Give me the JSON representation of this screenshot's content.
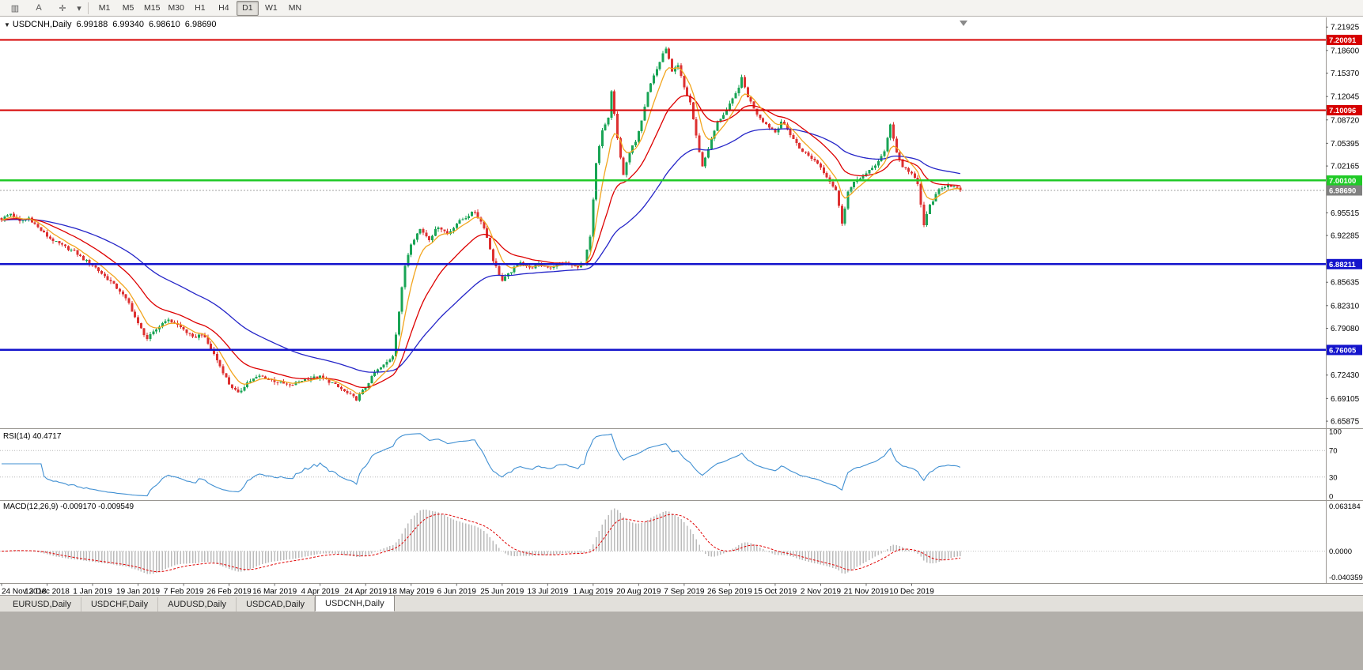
{
  "toolbar": {
    "icons": [
      {
        "name": "chart-window-icon",
        "glyph": "▥"
      },
      {
        "name": "text-annotation-icon",
        "glyph": "A"
      },
      {
        "name": "crosshair-icon",
        "glyph": "✛"
      },
      {
        "name": "dropdown-caret-icon",
        "glyph": "▾"
      }
    ],
    "timeframes": [
      "M1",
      "M5",
      "M15",
      "M30",
      "H1",
      "H4",
      "D1",
      "W1",
      "MN"
    ],
    "active_timeframe": "D1"
  },
  "chart": {
    "symbol": "USDCNH,Daily",
    "collapse_icon": "▼",
    "ohlc": {
      "open": "6.99188",
      "high": "6.99340",
      "low": "6.98610",
      "close": "6.98690"
    }
  },
  "indicators": {
    "rsi": {
      "label": "RSI(14) 40.4717",
      "period": 14,
      "value": 40.4717,
      "scale_labels": [
        100,
        70,
        30,
        0
      ],
      "level_lines": [
        70,
        30
      ],
      "color": "#3f8fd2"
    },
    "macd": {
      "label": "MACD(12,26,9) -0.009170 -0.009549",
      "fast": 12,
      "slow": 26,
      "signal": 9,
      "macd_value": "-0.009170",
      "signal_value": "-0.009549",
      "scale_max": "0.063184",
      "scale_zero": "0.0000",
      "scale_min": "-0.040359",
      "scale_max_num": 0.063184,
      "scale_min_num": -0.040359,
      "histogram_color": "#bbbbbb",
      "signal_color": "#e00000"
    }
  },
  "price_scale": {
    "ticks": [
      "7.21925",
      "7.18600",
      "7.15370",
      "7.12045",
      "7.08720",
      "7.05395",
      "7.02165",
      "6.95515",
      "6.92285",
      "6.85635",
      "6.82310",
      "6.79080",
      "6.72430",
      "6.69105",
      "6.65875"
    ],
    "badges": [
      {
        "label": "7.20091",
        "price": 7.20091,
        "color": "#d60000",
        "name": "resistance-badge-1"
      },
      {
        "label": "7.10096",
        "price": 7.10096,
        "color": "#d60000",
        "name": "resistance-badge-2"
      },
      {
        "label": "7.00100",
        "price": 7.001,
        "color": "#1fca26",
        "name": "support-badge-green"
      },
      {
        "label": "6.98690",
        "price": 6.9869,
        "color": "#808080",
        "name": "current-price-badge"
      },
      {
        "label": "6.88211",
        "price": 6.88211,
        "color": "#1414cc",
        "name": "support-badge-blue-1"
      },
      {
        "label": "6.76005",
        "price": 6.76005,
        "color": "#1414cc",
        "name": "support-badge-blue-2"
      }
    ]
  },
  "chart_data": {
    "type": "candlestick",
    "symbol": "USDCNH",
    "timeframe": "Daily",
    "title": "USDCNH,Daily 6.99188 6.99340 6.98610 6.98690",
    "x_labels": [
      "24 Nov 2018",
      "13 Dec 2018",
      "1 Jan 2019",
      "19 Jan 2019",
      "7 Feb 2019",
      "26 Feb 2019",
      "16 Mar 2019",
      "4 Apr 2019",
      "24 Apr 2019",
      "18 May 2019",
      "6 Jun 2019",
      "25 Jun 2019",
      "13 Jul 2019",
      "1 Aug 2019",
      "20 Aug 2019",
      "7 Sep 2019",
      "26 Sep 2019",
      "15 Oct 2019",
      "2 Nov 2019",
      "21 Nov 2019",
      "10 Dec 2019"
    ],
    "bars_per_label": 15,
    "bar_count": 317,
    "price_range": [
      6.655,
      7.245
    ],
    "last_close": 6.9869,
    "up_color": "#19a455",
    "down_color": "#dd3030",
    "noise": 0.0042,
    "wick": 0.004,
    "close_keyframes": [
      [
        0,
        6.946
      ],
      [
        3,
        6.954
      ],
      [
        6,
        6.942
      ],
      [
        9,
        6.948
      ],
      [
        12,
        6.934
      ],
      [
        15,
        6.922
      ],
      [
        18,
        6.913
      ],
      [
        21,
        6.906
      ],
      [
        24,
        6.9
      ],
      [
        27,
        6.889
      ],
      [
        30,
        6.881
      ],
      [
        33,
        6.869
      ],
      [
        36,
        6.857
      ],
      [
        39,
        6.844
      ],
      [
        42,
        6.826
      ],
      [
        45,
        6.797
      ],
      [
        48,
        6.776
      ],
      [
        51,
        6.789
      ],
      [
        54,
        6.803
      ],
      [
        57,
        6.799
      ],
      [
        60,
        6.789
      ],
      [
        63,
        6.777
      ],
      [
        66,
        6.783
      ],
      [
        69,
        6.762
      ],
      [
        72,
        6.737
      ],
      [
        75,
        6.712
      ],
      [
        78,
        6.698
      ],
      [
        81,
        6.714
      ],
      [
        85,
        6.723
      ],
      [
        90,
        6.716
      ],
      [
        95,
        6.709
      ],
      [
        100,
        6.719
      ],
      [
        105,
        6.722
      ],
      [
        109,
        6.713
      ],
      [
        113,
        6.701
      ],
      [
        117,
        6.69
      ],
      [
        120,
        6.707
      ],
      [
        123,
        6.728
      ],
      [
        126,
        6.738
      ],
      [
        129,
        6.752
      ],
      [
        131,
        6.815
      ],
      [
        133,
        6.88
      ],
      [
        135,
        6.912
      ],
      [
        138,
        6.932
      ],
      [
        141,
        6.918
      ],
      [
        144,
        6.936
      ],
      [
        147,
        6.925
      ],
      [
        150,
        6.94
      ],
      [
        153,
        6.949
      ],
      [
        156,
        6.957
      ],
      [
        159,
        6.935
      ],
      [
        162,
        6.888
      ],
      [
        165,
        6.858
      ],
      [
        168,
        6.872
      ],
      [
        171,
        6.886
      ],
      [
        174,
        6.876
      ],
      [
        177,
        6.881
      ],
      [
        181,
        6.878
      ],
      [
        185,
        6.884
      ],
      [
        189,
        6.878
      ],
      [
        192,
        6.882
      ],
      [
        194,
        6.92
      ],
      [
        196,
        7.025
      ],
      [
        198,
        7.072
      ],
      [
        200,
        7.09
      ],
      [
        201,
        7.128
      ],
      [
        203,
        7.06
      ],
      [
        205,
        7.01
      ],
      [
        207,
        7.04
      ],
      [
        209,
        7.058
      ],
      [
        211,
        7.088
      ],
      [
        213,
        7.128
      ],
      [
        215,
        7.15
      ],
      [
        217,
        7.17
      ],
      [
        219,
        7.19
      ],
      [
        221,
        7.155
      ],
      [
        223,
        7.164
      ],
      [
        225,
        7.133
      ],
      [
        227,
        7.112
      ],
      [
        229,
        7.064
      ],
      [
        231,
        7.021
      ],
      [
        233,
        7.047
      ],
      [
        236,
        7.084
      ],
      [
        239,
        7.101
      ],
      [
        242,
        7.124
      ],
      [
        244,
        7.146
      ],
      [
        246,
        7.121
      ],
      [
        249,
        7.096
      ],
      [
        252,
        7.081
      ],
      [
        255,
        7.07
      ],
      [
        257,
        7.085
      ],
      [
        260,
        7.067
      ],
      [
        263,
        7.047
      ],
      [
        266,
        7.036
      ],
      [
        269,
        7.026
      ],
      [
        272,
        7.007
      ],
      [
        275,
        6.987
      ],
      [
        277,
        6.941
      ],
      [
        279,
        6.985
      ],
      [
        282,
        7.003
      ],
      [
        285,
        7.01
      ],
      [
        288,
        7.023
      ],
      [
        291,
        7.041
      ],
      [
        293,
        7.082
      ],
      [
        295,
        7.041
      ],
      [
        297,
        7.021
      ],
      [
        300,
        7.011
      ],
      [
        302,
        6.995
      ],
      [
        304,
        6.938
      ],
      [
        306,
        6.966
      ],
      [
        309,
        6.987
      ],
      [
        312,
        6.996
      ],
      [
        316,
        6.9869
      ]
    ],
    "moving_averages": [
      {
        "name": "fast",
        "period": 7,
        "color": "#f2a51e"
      },
      {
        "name": "medium",
        "period": 21,
        "color": "#dd0000"
      },
      {
        "name": "slow",
        "period": 55,
        "color": "#2525c8"
      }
    ],
    "hlines": [
      {
        "price": 7.20091,
        "color": "#d60000",
        "width": 2,
        "name": "resistance-line-1"
      },
      {
        "price": 7.10096,
        "color": "#d60000",
        "width": 2,
        "name": "resistance-line-2"
      },
      {
        "price": 7.001,
        "color": "#1fca26",
        "width": 2.5,
        "name": "support-line-green"
      },
      {
        "price": 6.88211,
        "color": "#1414cc",
        "width": 2.5,
        "name": "support-line-blue-1"
      },
      {
        "price": 6.76005,
        "color": "#1414cc",
        "width": 2.5,
        "name": "support-line-blue-2"
      }
    ],
    "current_price_line": {
      "price": 6.9869,
      "color": "#a0a0a0"
    }
  },
  "tabs": [
    {
      "label": "EURUSD,Daily",
      "active": false
    },
    {
      "label": "USDCHF,Daily",
      "active": false
    },
    {
      "label": "AUDUSD,Daily",
      "active": false
    },
    {
      "label": "USDCAD,Daily",
      "active": false
    },
    {
      "label": "USDCNH,Daily",
      "active": true
    }
  ]
}
